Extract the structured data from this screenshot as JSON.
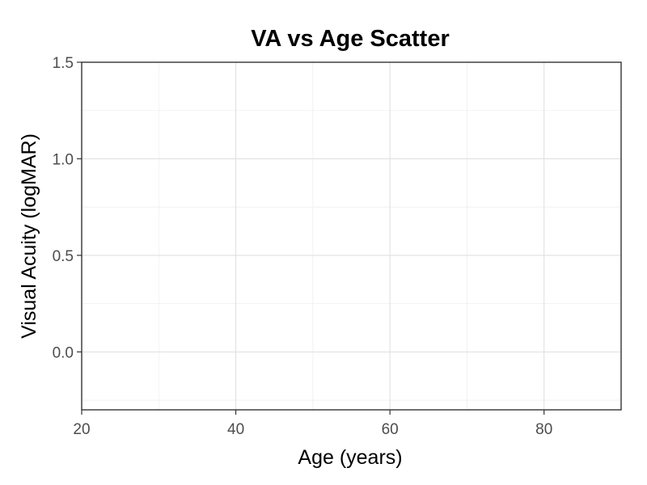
{
  "chart_data": {
    "type": "scatter",
    "title": "VA vs Age Scatter",
    "xlabel": "Age (years)",
    "ylabel": "Visual Acuity (logMAR)",
    "xlim": [
      20,
      90
    ],
    "ylim": [
      -0.3,
      1.5
    ],
    "x_ticks": [
      20,
      40,
      60,
      80
    ],
    "x_tick_labels": [
      "20",
      "40",
      "60",
      "80"
    ],
    "y_ticks": [
      0.0,
      0.5,
      1.0,
      1.5
    ],
    "y_tick_labels": [
      "0.0",
      "0.5",
      "1.0",
      "1.5"
    ],
    "x_minor_ticks": [
      30,
      50,
      70
    ],
    "y_minor_ticks": [
      -0.25,
      0.25,
      0.75,
      1.25
    ],
    "grid": true,
    "points": []
  }
}
